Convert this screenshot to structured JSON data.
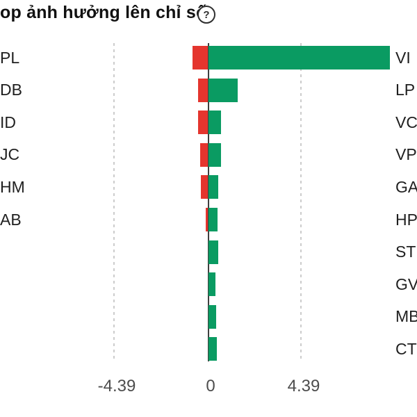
{
  "header": {
    "title": "op ảnh hưởng lên chỉ số",
    "help_glyph": "?"
  },
  "colors": {
    "positive_bar": "#0a9b62",
    "negative_bar": "#e4352e",
    "zero_axis": "#3f3f3f",
    "dashed_grid": "#cccccc",
    "tick_text": "#4d4d4d",
    "ticker_text": "#1f1f1f"
  },
  "chart_data": {
    "type": "bar",
    "orientation": "horizontal",
    "title": "op ảnh hưởng lên chỉ số",
    "xlabel": "",
    "ylabel": "",
    "x_ticks": [
      -4.39,
      0,
      4.39
    ],
    "x_tick_labels": [
      "-4.39",
      "0",
      "4.39"
    ],
    "xlim": [
      -9.8,
      9.8
    ],
    "grid": "dashed vertical lines at -4.39 and +4.39, solid zero axis",
    "legend": "none",
    "rows": [
      {
        "left_label": "PL",
        "negative": -0.74,
        "right_label": "VI",
        "positive": 8.55
      },
      {
        "left_label": "DB",
        "negative": -0.47,
        "right_label": "LP",
        "positive": 1.4
      },
      {
        "left_label": "ID",
        "negative": -0.46,
        "right_label": "VC",
        "positive": 0.59
      },
      {
        "left_label": "JC",
        "negative": -0.37,
        "right_label": "VP",
        "positive": 0.61
      },
      {
        "left_label": "HM",
        "negative": -0.34,
        "right_label": "GA",
        "positive": 0.49
      },
      {
        "left_label": "AB",
        "negative": -0.13,
        "right_label": "HP",
        "positive": 0.44
      },
      {
        "left_label": "",
        "negative": 0,
        "right_label": "ST",
        "positive": 0.46
      },
      {
        "left_label": "",
        "negative": 0,
        "right_label": "GV",
        "positive": 0.33
      },
      {
        "left_label": "",
        "negative": 0,
        "right_label": "MB",
        "positive": 0.37
      },
      {
        "left_label": "",
        "negative": 0,
        "right_label": "CT",
        "positive": 0.4
      }
    ]
  }
}
